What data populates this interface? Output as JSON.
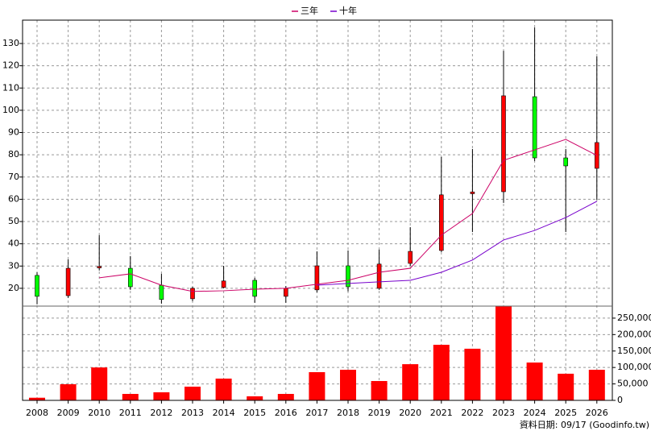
{
  "chart_data": [
    {
      "type": "candlestick",
      "categories": [
        "2008",
        "2009",
        "2010",
        "2011",
        "2012",
        "2013",
        "2014",
        "2015",
        "2016",
        "2017",
        "2018",
        "2019",
        "2020",
        "2021",
        "2022",
        "2023",
        "2024",
        "2025",
        "2026"
      ],
      "open": [
        25.8,
        16.7,
        29.2,
        29.0,
        21.4,
        15.3,
        20.4,
        23.6,
        16.4,
        19.3,
        30.1,
        20.0,
        31.2,
        37.0,
        62.5,
        63.4,
        106.1,
        78.6,
        73.9
      ],
      "high": [
        27.2,
        33.0,
        43.9,
        34.5,
        26.5,
        20.7,
        30.1,
        24.7,
        21.0,
        36.6,
        37.0,
        37.4,
        47.5,
        79.0,
        82.6,
        126.7,
        137.2,
        82.6,
        124.2
      ],
      "low": [
        12.8,
        15.7,
        28.0,
        19.3,
        13.1,
        14.2,
        20.0,
        13.5,
        13.5,
        18.2,
        18.6,
        19.3,
        30.1,
        36.3,
        45.3,
        58.4,
        77.2,
        45.3,
        59.8
      ],
      "close": [
        16.4,
        29.0,
        29.8,
        20.7,
        15.0,
        20.0,
        23.3,
        16.4,
        20.0,
        30.1,
        20.7,
        30.9,
        36.6,
        62.0,
        63.3,
        106.5,
        78.6,
        75.0,
        85.5
      ],
      "up_color": "#ff0000",
      "down_color": "#00ff00",
      "series": [
        {
          "name": "三年",
          "color": "#cc0066",
          "values": [
            null,
            null,
            24.7,
            26.5,
            21.4,
            18.6,
            18.9,
            19.6,
            20.0,
            21.8,
            23.6,
            27.2,
            29.0,
            43.9,
            53.6,
            77.5,
            82.2,
            86.9,
            79.7
          ]
        },
        {
          "name": "十年",
          "color": "#7700cc",
          "values": [
            null,
            null,
            null,
            null,
            null,
            null,
            null,
            null,
            null,
            21.4,
            22.2,
            22.9,
            23.6,
            27.2,
            32.7,
            41.7,
            46.0,
            51.8,
            59.1
          ]
        }
      ],
      "ylim": [
        12,
        140.5
      ],
      "yticks": [
        20,
        30,
        40,
        50,
        60,
        70,
        80,
        90,
        100,
        110,
        120,
        130
      ],
      "grid": true
    },
    {
      "type": "bar",
      "values": [
        8000,
        49000,
        100000,
        19600,
        24500,
        41700,
        66200,
        12300,
        19600,
        85800,
        93000,
        58800,
        110000,
        169000,
        157000,
        286000,
        115000,
        81000,
        93000
      ],
      "color": "#ff0000",
      "ylim": [
        0,
        289000
      ],
      "yticks": [
        0,
        {
          "value": 50000,
          "label": "50,000"
        },
        {
          "value": 100000,
          "label": "100,000"
        },
        {
          "value": 150000,
          "label": "150,000"
        },
        {
          "value": 200000,
          "label": "200,000"
        },
        {
          "value": 250000,
          "label": "250,000"
        }
      ],
      "grid": true
    }
  ],
  "source": "資料日期: 09/17 (Goodinfo.tw)"
}
